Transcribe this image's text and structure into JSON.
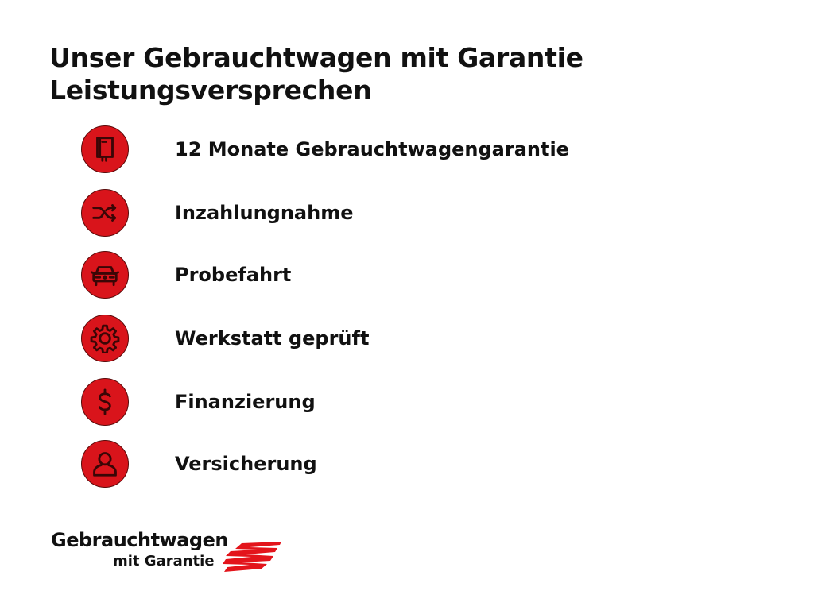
{
  "title": {
    "line1": "Unser Gebrauchtwagen mit Garantie",
    "line2": "Leistungsversprechen"
  },
  "accent_color": "#d9141b",
  "items": [
    {
      "label": "12 Monate Gebrauchtwagengarantie",
      "icon": "book-icon"
    },
    {
      "label": "Inzahlungnahme",
      "icon": "shuffle-icon"
    },
    {
      "label": "Probefahrt",
      "icon": "car-icon"
    },
    {
      "label": "Werkstatt geprüft",
      "icon": "gear-icon"
    },
    {
      "label": "Finanzierung",
      "icon": "dollar-icon"
    },
    {
      "label": "Versicherung",
      "icon": "person-icon"
    }
  ],
  "logo": {
    "line1": "Gebrauchtwagen",
    "line2": "mit Garantie"
  }
}
